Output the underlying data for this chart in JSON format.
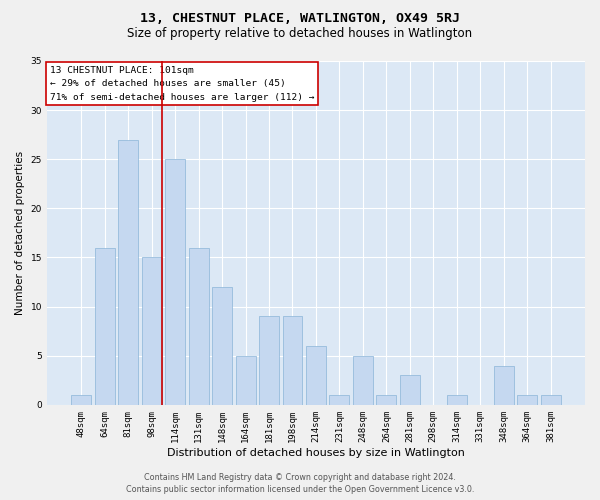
{
  "title": "13, CHESTNUT PLACE, WATLINGTON, OX49 5RJ",
  "subtitle": "Size of property relative to detached houses in Watlington",
  "xlabel": "Distribution of detached houses by size in Watlington",
  "ylabel": "Number of detached properties",
  "categories": [
    "48sqm",
    "64sqm",
    "81sqm",
    "98sqm",
    "114sqm",
    "131sqm",
    "148sqm",
    "164sqm",
    "181sqm",
    "198sqm",
    "214sqm",
    "231sqm",
    "248sqm",
    "264sqm",
    "281sqm",
    "298sqm",
    "314sqm",
    "331sqm",
    "348sqm",
    "364sqm",
    "381sqm"
  ],
  "values": [
    1,
    16,
    27,
    15,
    25,
    16,
    12,
    5,
    9,
    9,
    6,
    1,
    5,
    1,
    3,
    0,
    1,
    0,
    4,
    1,
    1
  ],
  "bar_color": "#c5d8f0",
  "bar_edge_color": "#8ab4d8",
  "background_color": "#dce8f5",
  "grid_color": "#ffffff",
  "vline_color": "#cc0000",
  "vline_position": 3.425,
  "annotation_text": "13 CHESTNUT PLACE: 101sqm\n← 29% of detached houses are smaller (45)\n71% of semi-detached houses are larger (112) →",
  "annotation_box_color": "#ffffff",
  "annotation_box_edge_color": "#cc0000",
  "footer_line1": "Contains HM Land Registry data © Crown copyright and database right 2024.",
  "footer_line2": "Contains public sector information licensed under the Open Government Licence v3.0.",
  "ylim": [
    0,
    35
  ],
  "yticks": [
    0,
    5,
    10,
    15,
    20,
    25,
    30,
    35
  ],
  "title_fontsize": 9.5,
  "subtitle_fontsize": 8.5,
  "xlabel_fontsize": 8,
  "ylabel_fontsize": 7.5,
  "tick_fontsize": 6.5,
  "footer_fontsize": 5.8,
  "annotation_fontsize": 6.8
}
